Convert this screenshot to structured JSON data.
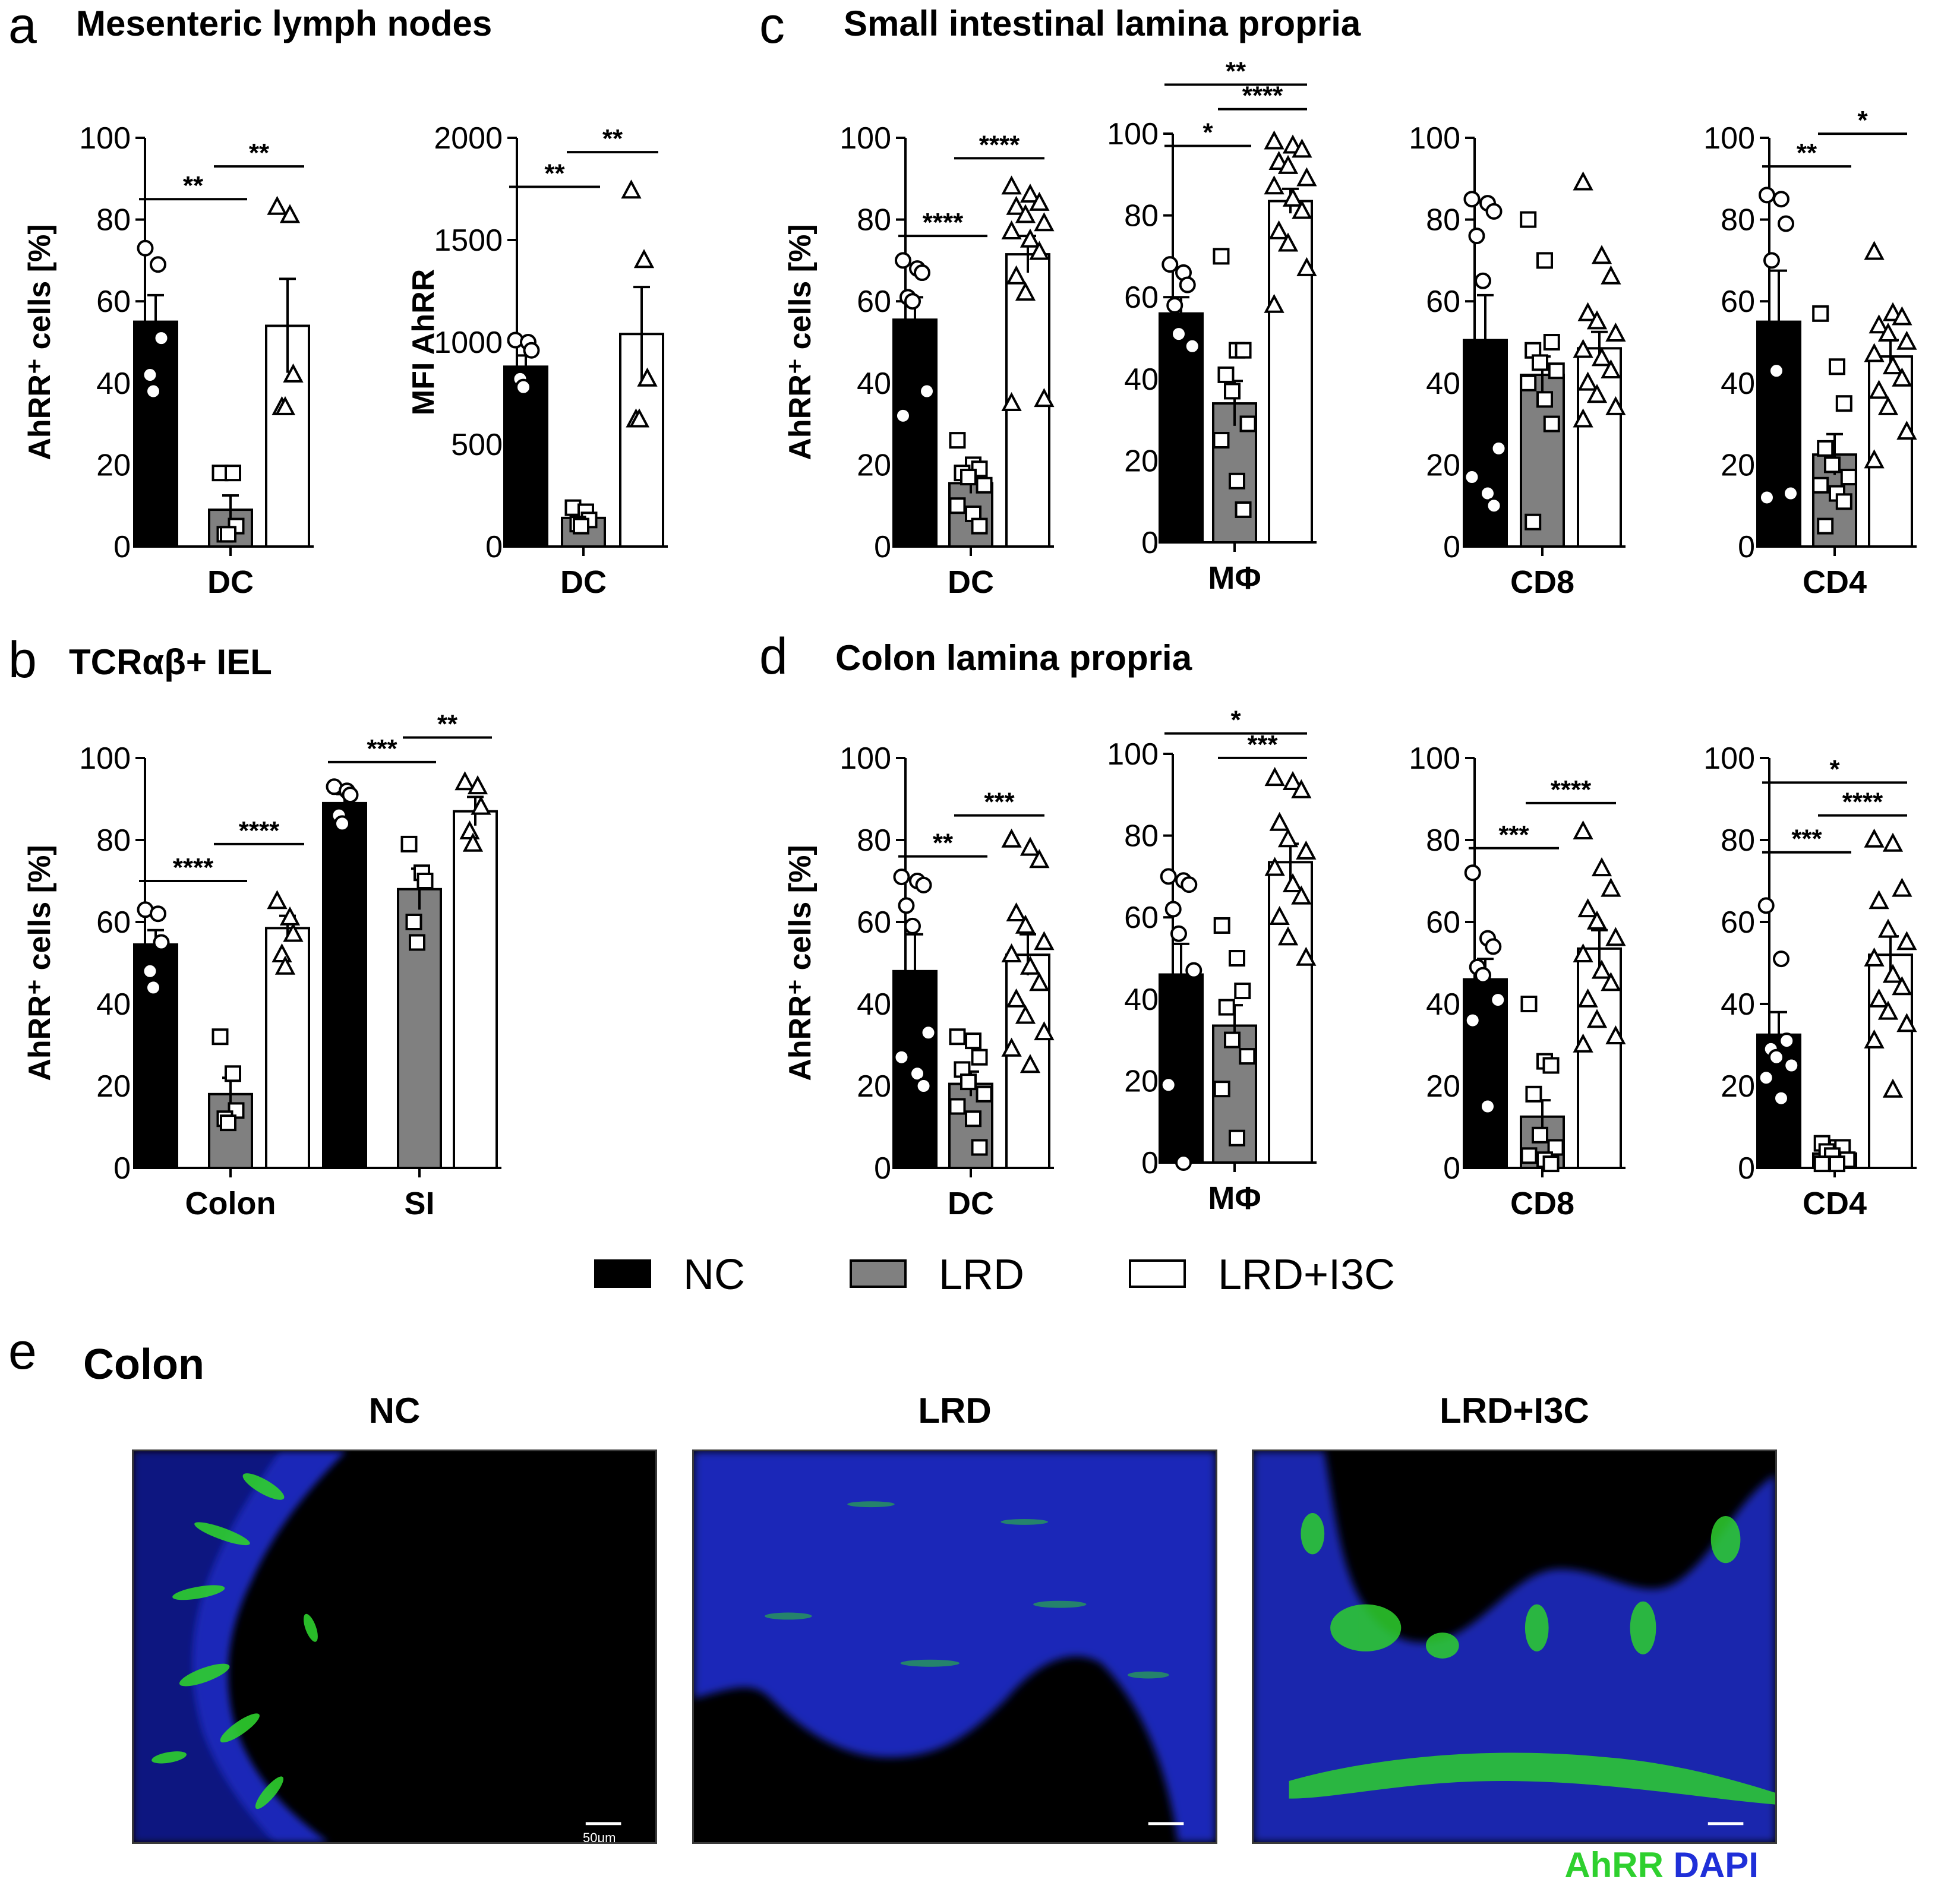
{
  "panels": {
    "a": {
      "letter": "a",
      "title": "Mesenteric lymph nodes"
    },
    "b": {
      "letter": "b",
      "title": "TCRαβ+ IEL"
    },
    "c": {
      "letter": "c",
      "title": "Small intestinal lamina propria"
    },
    "d": {
      "letter": "d",
      "title": "Colon lamina propria"
    },
    "e": {
      "letter": "e",
      "title": "Colon"
    }
  },
  "legend": [
    {
      "label": "NC",
      "color": "#000000"
    },
    {
      "label": "LRD",
      "color": "#808080"
    },
    {
      "label": "LRD+I3C",
      "color": "#ffffff"
    }
  ],
  "micrographs": {
    "titles": [
      "NC",
      "LRD",
      "LRD+I3C"
    ],
    "scale_bar": "50μm",
    "stain_green": "AhRR",
    "stain_blue": "DAPI",
    "green_color": "#2ed02e",
    "blue_color": "#1f2fd8"
  },
  "chart_data": [
    {
      "id": "a1",
      "type": "bar",
      "ylabel": "AhRR⁺ cells [%]",
      "ylim": [
        0,
        100
      ],
      "yticks": [
        0,
        20,
        40,
        60,
        80,
        100
      ],
      "groups": [
        {
          "label": "DC",
          "bars": [
            {
              "series": "NC",
              "mean": 55,
              "sem": 6.5,
              "points": [
                73,
                69,
                51,
                42,
                38
              ]
            },
            {
              "series": "LRD",
              "mean": 9,
              "sem": 3.5,
              "points": [
                18,
                18,
                5,
                3,
                3
              ]
            },
            {
              "series": "LRD+I3C",
              "mean": 54,
              "sem": 11.5,
              "points": [
                83,
                81,
                42,
                34,
                34
              ]
            }
          ]
        }
      ],
      "brackets": [
        {
          "from": 0,
          "to": 1,
          "y": 85,
          "label": "**"
        },
        {
          "from": 1,
          "to": 2,
          "y": 93,
          "label": "**"
        }
      ]
    },
    {
      "id": "a2",
      "type": "bar",
      "ylabel": "MFI AhRR",
      "ylim": [
        0,
        2000
      ],
      "yticks": [
        0,
        500,
        1000,
        1500,
        2000
      ],
      "groups": [
        {
          "label": "DC",
          "bars": [
            {
              "series": "NC",
              "mean": 880,
              "sem": 55,
              "points": [
                1010,
                1000,
                960,
                820,
                780
              ]
            },
            {
              "series": "LRD",
              "mean": 140,
              "sem": 30,
              "points": [
                190,
                170,
                130,
                110,
                100
              ]
            },
            {
              "series": "LRD+I3C",
              "mean": 1040,
              "sem": 230,
              "points": [
                1740,
                1400,
                820,
                620,
                620
              ]
            }
          ]
        }
      ],
      "brackets": [
        {
          "from": 0,
          "to": 1,
          "y": 1760,
          "label": "**"
        },
        {
          "from": 1,
          "to": 2,
          "y": 1930,
          "label": "**"
        }
      ]
    },
    {
      "id": "b1",
      "type": "bar",
      "ylabel": "AhRR⁺ cells [%]",
      "ylim": [
        0,
        100
      ],
      "yticks": [
        0,
        20,
        40,
        60,
        80,
        100
      ],
      "groups": [
        {
          "label": "Colon",
          "bars": [
            {
              "series": "NC",
              "mean": 54.5,
              "sem": 3.5,
              "points": [
                63,
                62,
                55,
                48,
                44
              ]
            },
            {
              "series": "LRD",
              "mean": 18,
              "sem": 4,
              "points": [
                32,
                23,
                14,
                12,
                11
              ]
            },
            {
              "series": "LRD+I3C",
              "mean": 58.5,
              "sem": 3,
              "points": [
                65,
                61,
                57,
                52,
                49
              ]
            }
          ]
        },
        {
          "label": "SI",
          "bars": [
            {
              "series": "NC",
              "mean": 89,
              "sem": 2.2,
              "points": [
                93,
                92,
                91,
                86,
                84
              ]
            },
            {
              "series": "LRD",
              "mean": 68,
              "sem": 5,
              "points": [
                79,
                72,
                70,
                60,
                55
              ]
            },
            {
              "series": "LRD+I3C",
              "mean": 87,
              "sem": 3.5,
              "points": [
                94,
                93,
                88,
                82,
                79
              ]
            }
          ]
        }
      ],
      "brackets": [
        {
          "group": 0,
          "from": 0,
          "to": 1,
          "y": 70,
          "label": "****"
        },
        {
          "group": 0,
          "from": 1,
          "to": 2,
          "y": 79,
          "label": "****"
        },
        {
          "group": 1,
          "from": 0,
          "to": 1,
          "y": 99,
          "label": "***"
        },
        {
          "group": 1,
          "from": 1,
          "to": 2,
          "y": 105,
          "label": "**"
        }
      ]
    },
    {
      "id": "c1",
      "type": "bar",
      "ylabel": "AhRR⁺ cells [%]",
      "ylim": [
        0,
        100
      ],
      "yticks": [
        0,
        20,
        40,
        60,
        80,
        100
      ],
      "groups": [
        {
          "label": "DC",
          "bars": [
            {
              "series": "NC",
              "mean": 55.5,
              "sem": 5.5,
              "points": [
                70,
                68,
                67,
                61,
                60,
                38,
                32
              ]
            },
            {
              "series": "LRD",
              "mean": 15.5,
              "sem": 2.5,
              "points": [
                26,
                20,
                19,
                18,
                17,
                15,
                10,
                8,
                5
              ]
            },
            {
              "series": "LRD+I3C",
              "mean": 71.5,
              "sem": 4.5,
              "points": [
                88,
                86,
                84,
                83,
                81,
                79,
                77,
                75,
                72,
                66,
                62,
                36,
                35
              ]
            }
          ]
        }
      ],
      "brackets": [
        {
          "from": 0,
          "to": 1,
          "y": 76,
          "label": "****"
        },
        {
          "from": 1,
          "to": 2,
          "y": 95,
          "label": "****"
        }
      ]
    },
    {
      "id": "c2",
      "type": "bar",
      "ylabel": "",
      "ylim": [
        0,
        100
      ],
      "yticks": [
        0,
        20,
        40,
        60,
        80,
        100
      ],
      "groups": [
        {
          "label": "MΦ",
          "bars": [
            {
              "series": "NC",
              "mean": 56,
              "sem": 4,
              "points": [
                68,
                66,
                63,
                58,
                51,
                48
              ]
            },
            {
              "series": "LRD",
              "mean": 34,
              "sem": 5.5,
              "points": [
                70,
                47,
                47,
                41,
                37,
                29,
                25,
                15,
                8
              ]
            },
            {
              "series": "LRD+I3C",
              "mean": 83.5,
              "sem": 3,
              "points": [
                98,
                97,
                96,
                93,
                92,
                89,
                87,
                84,
                81,
                76,
                73,
                67,
                58
              ]
            }
          ]
        }
      ],
      "brackets": [
        {
          "from": 0,
          "to": 1,
          "y": 97,
          "label": "*"
        },
        {
          "from": 1,
          "to": 2,
          "y": 106,
          "label": "****"
        },
        {
          "from": 0,
          "to": 2,
          "y": 112,
          "label": "**"
        }
      ]
    },
    {
      "id": "c3",
      "type": "bar",
      "ylabel": "",
      "ylim": [
        0,
        100
      ],
      "yticks": [
        0,
        20,
        40,
        60,
        80,
        100
      ],
      "groups": [
        {
          "label": "CD8",
          "bars": [
            {
              "series": "NC",
              "mean": 50.5,
              "sem": 11,
              "points": [
                85,
                84,
                82,
                76,
                65,
                24,
                17,
                13,
                10
              ]
            },
            {
              "series": "LRD",
              "mean": 42,
              "sem": 4.5,
              "points": [
                80,
                70,
                50,
                48,
                45,
                43,
                40,
                36,
                30,
                6
              ]
            },
            {
              "series": "LRD+I3C",
              "mean": 48.5,
              "sem": 4,
              "points": [
                89,
                71,
                66,
                57,
                55,
                52,
                48,
                46,
                43,
                40,
                37,
                34,
                31
              ]
            }
          ]
        }
      ],
      "brackets": []
    },
    {
      "id": "c4",
      "type": "bar",
      "ylabel": "",
      "ylim": [
        0,
        100
      ],
      "yticks": [
        0,
        20,
        40,
        60,
        80,
        100
      ],
      "groups": [
        {
          "label": "CD4",
          "bars": [
            {
              "series": "NC",
              "mean": 55,
              "sem": 12.5,
              "points": [
                86,
                85,
                79,
                70,
                43,
                13,
                12
              ]
            },
            {
              "series": "LRD",
              "mean": 22.5,
              "sem": 5,
              "points": [
                57,
                44,
                35,
                24,
                20,
                17,
                15,
                13,
                11,
                5
              ]
            },
            {
              "series": "LRD+I3C",
              "mean": 46.5,
              "sem": 4,
              "points": [
                72,
                57,
                56,
                54,
                52,
                50,
                47,
                44,
                41,
                38,
                34,
                28,
                21
              ]
            }
          ]
        }
      ],
      "brackets": [
        {
          "from": 0,
          "to": 1,
          "y": 93,
          "label": "**"
        },
        {
          "from": 1,
          "to": 2,
          "y": 101,
          "label": "*"
        }
      ]
    },
    {
      "id": "d1",
      "type": "bar",
      "ylabel": "AhRR⁺ cells [%]",
      "ylim": [
        0,
        100
      ],
      "yticks": [
        0,
        20,
        40,
        60,
        80,
        100
      ],
      "groups": [
        {
          "label": "DC",
          "bars": [
            {
              "series": "NC",
              "mean": 48,
              "sem": 9,
              "points": [
                71,
                70,
                69,
                64,
                59,
                33,
                27,
                23,
                20
              ]
            },
            {
              "series": "LRD",
              "mean": 20.5,
              "sem": 3,
              "points": [
                32,
                31,
                27,
                24,
                21,
                18,
                15,
                12,
                5
              ]
            },
            {
              "series": "LRD+I3C",
              "mean": 52,
              "sem": 5,
              "points": [
                80,
                78,
                75,
                62,
                59,
                55,
                52,
                49,
                45,
                41,
                37,
                33,
                29,
                25
              ]
            }
          ]
        }
      ],
      "brackets": [
        {
          "from": 0,
          "to": 1,
          "y": 76,
          "label": "**"
        },
        {
          "from": 1,
          "to": 2,
          "y": 86,
          "label": "***"
        }
      ]
    },
    {
      "id": "d2",
      "type": "bar",
      "ylabel": "",
      "ylim": [
        0,
        100
      ],
      "yticks": [
        0,
        20,
        40,
        60,
        80,
        100
      ],
      "groups": [
        {
          "label": "MΦ",
          "bars": [
            {
              "series": "NC",
              "mean": 46,
              "sem": 7.5,
              "points": [
                70,
                69,
                68,
                62,
                56,
                47,
                19,
                0
              ]
            },
            {
              "series": "LRD",
              "mean": 33.5,
              "sem": 5,
              "points": [
                58,
                50,
                42,
                38,
                30,
                26,
                18,
                6
              ]
            },
            {
              "series": "LRD+I3C",
              "mean": 73.5,
              "sem": 4.5,
              "points": [
                94,
                93,
                91,
                83,
                79,
                76,
                72,
                68,
                65,
                60,
                55,
                50
              ]
            }
          ]
        }
      ],
      "brackets": [
        {
          "from": 1,
          "to": 2,
          "y": 99,
          "label": "***"
        },
        {
          "from": 0,
          "to": 2,
          "y": 105,
          "label": "*"
        }
      ]
    },
    {
      "id": "d3",
      "type": "bar",
      "ylabel": "",
      "ylim": [
        0,
        100
      ],
      "yticks": [
        0,
        20,
        40,
        60,
        80,
        100
      ],
      "groups": [
        {
          "label": "CD8",
          "bars": [
            {
              "series": "NC",
              "mean": 46,
              "sem": 5,
              "points": [
                72,
                56,
                54,
                49,
                47,
                41,
                36,
                15
              ]
            },
            {
              "series": "LRD",
              "mean": 12.5,
              "sem": 4,
              "points": [
                40,
                26,
                25,
                18,
                8,
                5,
                3,
                2,
                1
              ]
            },
            {
              "series": "LRD+I3C",
              "mean": 53.5,
              "sem": 4.5,
              "points": [
                82,
                73,
                68,
                63,
                60,
                56,
                52,
                48,
                45,
                41,
                36,
                32,
                30
              ]
            }
          ]
        }
      ],
      "brackets": [
        {
          "from": 0,
          "to": 1,
          "y": 78,
          "label": "***"
        },
        {
          "from": 1,
          "to": 2,
          "y": 89,
          "label": "****"
        }
      ]
    },
    {
      "id": "d4",
      "type": "bar",
      "ylabel": "",
      "ylim": [
        0,
        100
      ],
      "yticks": [
        0,
        20,
        40,
        60,
        80,
        100
      ],
      "groups": [
        {
          "label": "CD4",
          "bars": [
            {
              "series": "NC",
              "mean": 32.5,
              "sem": 5.5,
              "points": [
                64,
                51,
                31,
                29,
                27,
                25,
                22,
                17
              ]
            },
            {
              "series": "LRD",
              "mean": 3.5,
              "sem": 1,
              "points": [
                6,
                5,
                5,
                4,
                3,
                2,
                1,
                1
              ]
            },
            {
              "series": "LRD+I3C",
              "mean": 52,
              "sem": 4.5,
              "points": [
                80,
                79,
                68,
                65,
                58,
                55,
                51,
                47,
                44,
                41,
                38,
                35,
                31,
                19
              ]
            }
          ]
        }
      ],
      "brackets": [
        {
          "from": 0,
          "to": 1,
          "y": 77,
          "label": "***"
        },
        {
          "from": 1,
          "to": 2,
          "y": 86,
          "label": "****"
        },
        {
          "from": 0,
          "to": 2,
          "y": 94,
          "label": "*"
        }
      ]
    }
  ]
}
